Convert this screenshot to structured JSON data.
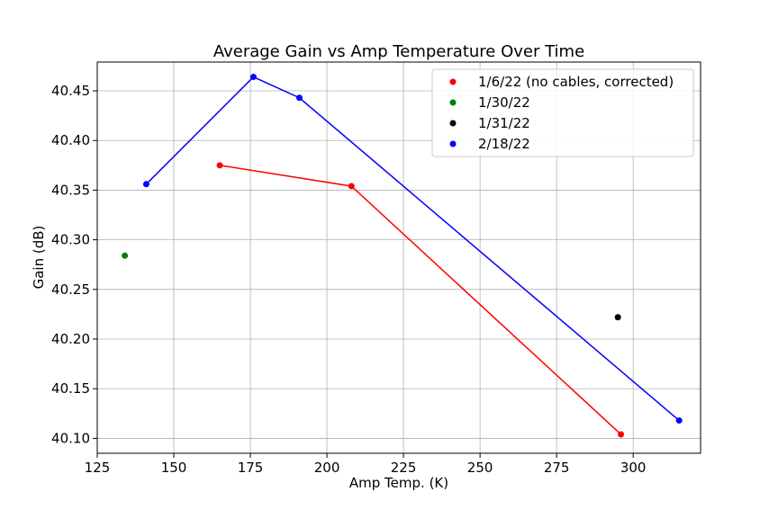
{
  "chart_data": {
    "type": "line",
    "title": "Average Gain vs Amp Temperature Over Time",
    "xlabel": "Amp Temp. (K)",
    "ylabel": "Gain (dB)",
    "xlim": [
      125,
      322
    ],
    "ylim": [
      40.085,
      40.479
    ],
    "xticks": [
      125,
      150,
      175,
      200,
      225,
      250,
      275,
      300
    ],
    "yticks": [
      40.1,
      40.15,
      40.2,
      40.25,
      40.3,
      40.35,
      40.4,
      40.45
    ],
    "ytick_labels": [
      "40.10",
      "40.15",
      "40.20",
      "40.25",
      "40.30",
      "40.35",
      "40.40",
      "40.45"
    ],
    "grid": true,
    "legend_position": "top-right",
    "series": [
      {
        "name": "1/6/22 (no cables, corrected)",
        "color": "#ff0000",
        "points": [
          [
            165,
            40.375
          ],
          [
            208,
            40.354
          ],
          [
            296,
            40.104
          ]
        ]
      },
      {
        "name": "1/30/22",
        "color": "#008000",
        "points": [
          [
            134,
            40.284
          ]
        ]
      },
      {
        "name": "1/31/22",
        "color": "#000000",
        "points": [
          [
            295,
            40.222
          ]
        ]
      },
      {
        "name": "2/18/22",
        "color": "#0000ff",
        "points": [
          [
            141,
            40.356
          ],
          [
            176,
            40.464
          ],
          [
            191,
            40.443
          ],
          [
            315,
            40.118
          ]
        ]
      }
    ]
  }
}
